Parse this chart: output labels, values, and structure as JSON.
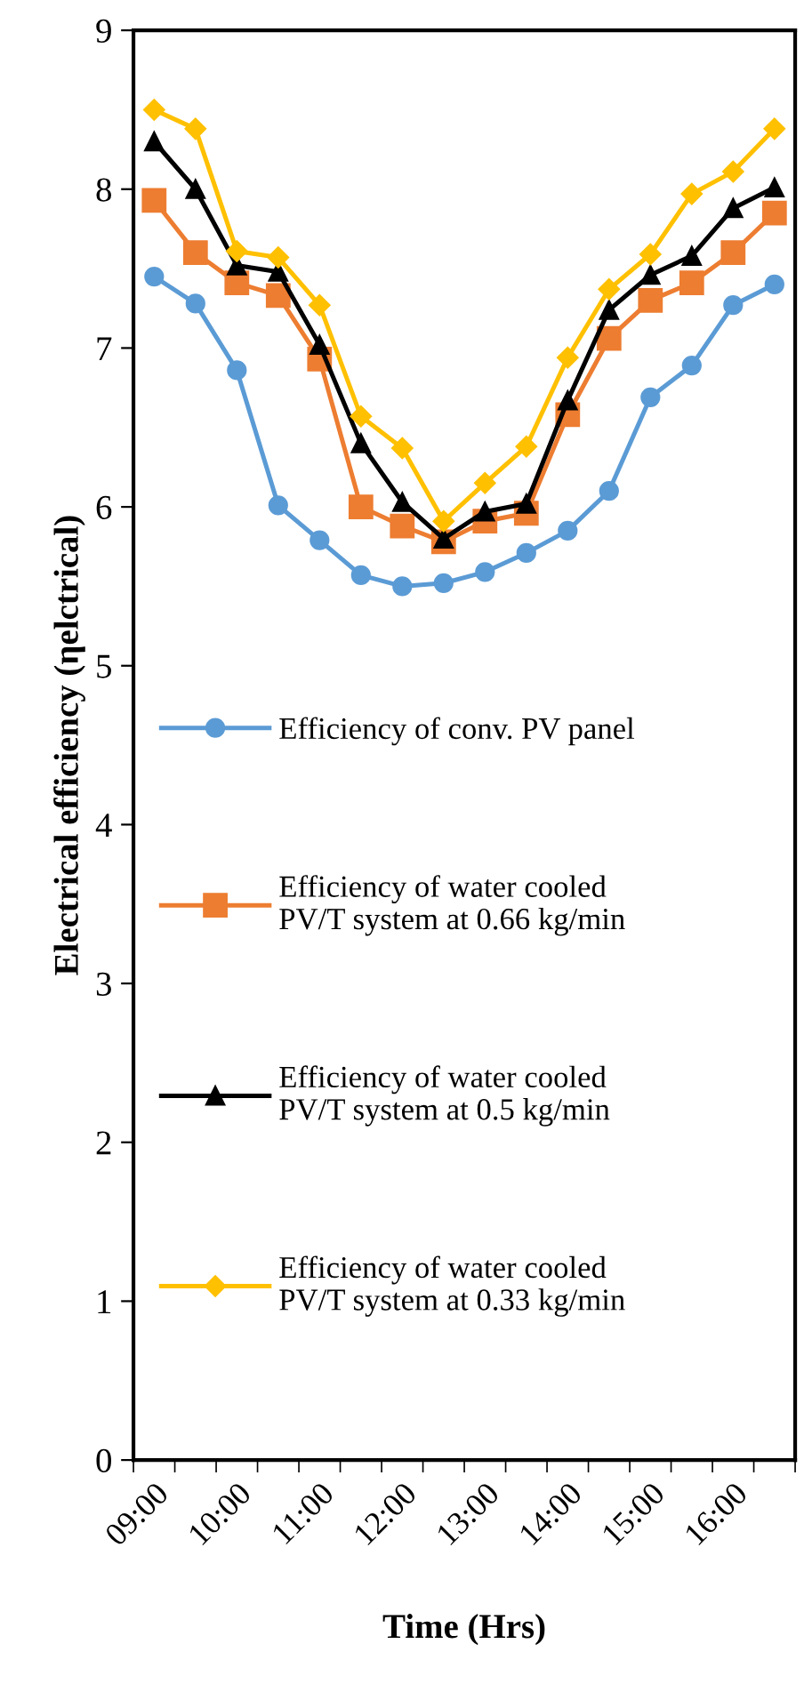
{
  "chart_data": {
    "type": "line",
    "xlabel": "Time (Hrs)",
    "ylabel": "Electrical efficiency (ηelctrical)",
    "categories": [
      "09:00",
      null,
      "10:00",
      null,
      "11:00",
      null,
      "12:00",
      null,
      "13:00",
      null,
      "14:00",
      null,
      "15:00",
      null,
      "16:00",
      null
    ],
    "series": [
      {
        "name": "Efficiency of conv. PV panel",
        "color": "#5b9bd5",
        "marker": "circle",
        "values": [
          7.45,
          7.28,
          6.86,
          6.01,
          5.79,
          5.57,
          5.5,
          5.52,
          5.59,
          5.71,
          5.85,
          6.1,
          6.69,
          6.89,
          7.27,
          7.4
        ]
      },
      {
        "name": "Efficiency of water cooled\nPV/T system at 0.66 kg/min",
        "color": "#ed7d31",
        "marker": "square",
        "values": [
          7.93,
          7.6,
          7.41,
          7.33,
          6.93,
          6.0,
          5.88,
          5.78,
          5.91,
          5.96,
          6.58,
          7.06,
          7.3,
          7.41,
          7.6,
          7.85
        ]
      },
      {
        "name": "Efficiency of water cooled\nPV/T system at 0.5 kg/min",
        "color": "#000000",
        "marker": "triangle",
        "values": [
          8.3,
          8.0,
          7.52,
          7.48,
          7.02,
          6.4,
          6.03,
          5.8,
          5.97,
          6.02,
          6.67,
          7.24,
          7.46,
          7.58,
          7.88,
          8.01
        ]
      },
      {
        "name": "Efficiency of water cooled\nPV/T system at 0.33 kg/min",
        "color": "#ffc000",
        "marker": "diamond",
        "values": [
          8.5,
          8.38,
          7.61,
          7.57,
          7.27,
          6.57,
          6.37,
          5.91,
          6.15,
          6.38,
          6.94,
          7.37,
          7.59,
          7.97,
          8.11,
          8.38
        ]
      }
    ],
    "ylim": [
      0,
      9
    ],
    "yticks": [
      0,
      1,
      2,
      3,
      4,
      5,
      6,
      7,
      8,
      9
    ],
    "grid": false,
    "legend": "center left",
    "line_style": "solid"
  }
}
